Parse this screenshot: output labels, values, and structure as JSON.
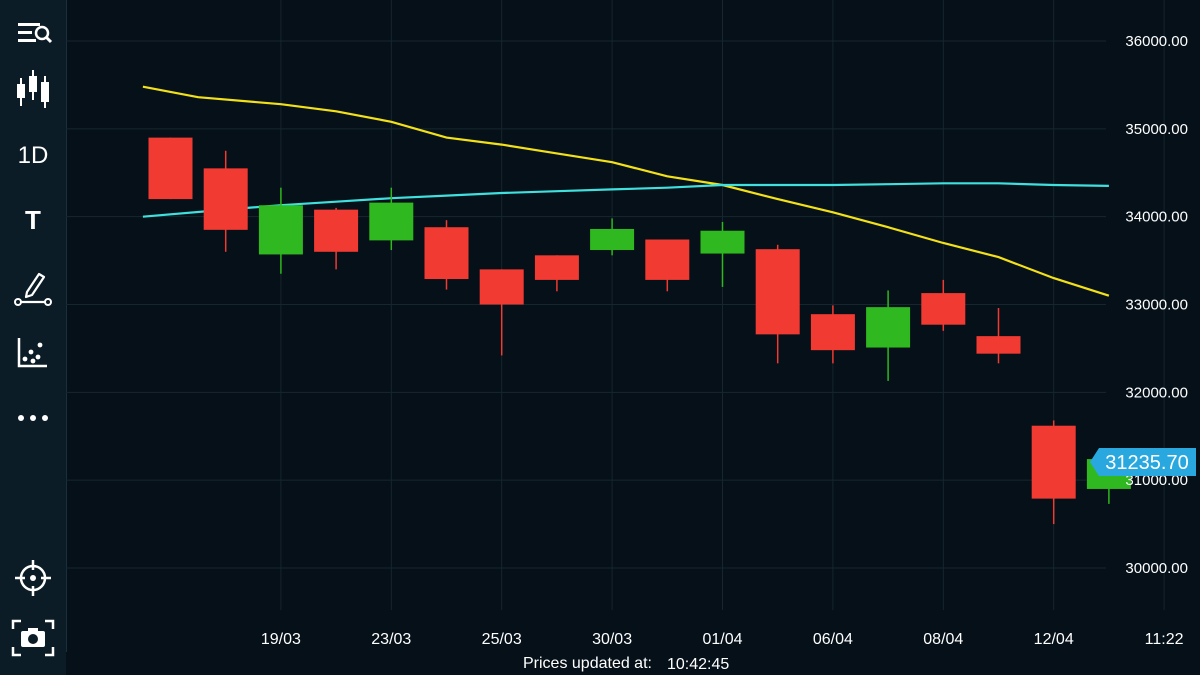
{
  "toolbar": {
    "items": [
      {
        "name": "menu-search-icon",
        "icon": "menu-search"
      },
      {
        "name": "candlestick-icon",
        "icon": "candlestick"
      },
      {
        "name": "timeframe-button",
        "label": "1D"
      },
      {
        "name": "text-tool-button",
        "label": "T"
      },
      {
        "name": "draw-tool-icon",
        "icon": "pencil-line"
      },
      {
        "name": "indicators-icon",
        "icon": "scatter"
      },
      {
        "name": "more-icon",
        "icon": "ellipsis"
      },
      {
        "name": "crosshair-icon",
        "icon": "crosshair"
      },
      {
        "name": "screenshot-icon",
        "icon": "camera"
      }
    ]
  },
  "chart_data": {
    "type": "candlestick",
    "y_axis_ticks": [
      "36000.00",
      "35000.00",
      "34000.00",
      "33000.00",
      "32000.00",
      "31000.00",
      "30000.00"
    ],
    "y_range": [
      29600,
      36300
    ],
    "x_axis_ticks": [
      {
        "label": "19/03",
        "index": 2
      },
      {
        "label": "23/03",
        "index": 4
      },
      {
        "label": "25/03",
        "index": 6
      },
      {
        "label": "30/03",
        "index": 8
      },
      {
        "label": "01/04",
        "index": 10
      },
      {
        "label": "06/04",
        "index": 12
      },
      {
        "label": "08/04",
        "index": 14
      },
      {
        "label": "12/04",
        "index": 16
      },
      {
        "label": "11:22",
        "index": 18
      }
    ],
    "candles": [
      {
        "index": 0,
        "open": 34900,
        "close": 34200,
        "high": 34900,
        "low": 34200
      },
      {
        "index": 1,
        "open": 34550,
        "close": 33850,
        "high": 34750,
        "low": 33600
      },
      {
        "index": 2,
        "open": 33570,
        "close": 34130,
        "high": 34330,
        "low": 33350
      },
      {
        "index": 3,
        "open": 34080,
        "close": 33600,
        "high": 34100,
        "low": 33400
      },
      {
        "index": 4,
        "open": 33730,
        "close": 34160,
        "high": 34330,
        "low": 33620
      },
      {
        "index": 5,
        "open": 33880,
        "close": 33290,
        "high": 33960,
        "low": 33170
      },
      {
        "index": 6,
        "open": 33400,
        "close": 33000,
        "high": 33400,
        "low": 32420
      },
      {
        "index": 7,
        "open": 33560,
        "close": 33280,
        "high": 33560,
        "low": 33150
      },
      {
        "index": 8,
        "open": 33620,
        "close": 33860,
        "high": 33980,
        "low": 33560
      },
      {
        "index": 9,
        "open": 33740,
        "close": 33280,
        "high": 33740,
        "low": 33150
      },
      {
        "index": 10,
        "open": 33580,
        "close": 33840,
        "high": 33940,
        "low": 33200
      },
      {
        "index": 11,
        "open": 33630,
        "close": 32660,
        "high": 33680,
        "low": 32330
      },
      {
        "index": 12,
        "open": 32890,
        "close": 32480,
        "high": 32990,
        "low": 32330
      },
      {
        "index": 13,
        "open": 32510,
        "close": 32970,
        "high": 33160,
        "low": 32130
      },
      {
        "index": 14,
        "open": 33130,
        "close": 32770,
        "high": 33280,
        "low": 32700
      },
      {
        "index": 15,
        "open": 32640,
        "close": 32440,
        "high": 32960,
        "low": 32330
      },
      {
        "index": 16,
        "open": 31620,
        "close": 30790,
        "high": 31680,
        "low": 30500
      },
      {
        "index": 17,
        "open": 30900,
        "close": 31240,
        "high": 31350,
        "low": 30730
      }
    ],
    "series": [
      {
        "color": "#f2e11a",
        "points": [
          [
            -0.5,
            35480
          ],
          [
            0.5,
            35360
          ],
          [
            2.0,
            35280
          ],
          [
            3.0,
            35200
          ],
          [
            4.0,
            35080
          ],
          [
            5.0,
            34900
          ],
          [
            6.0,
            34820
          ],
          [
            7.0,
            34720
          ],
          [
            8.0,
            34620
          ],
          [
            9.0,
            34460
          ],
          [
            10.0,
            34360
          ],
          [
            11.0,
            34200
          ],
          [
            12.0,
            34050
          ],
          [
            13.0,
            33880
          ],
          [
            14.0,
            33700
          ],
          [
            15.0,
            33540
          ],
          [
            16.0,
            33300
          ],
          [
            17.0,
            33100
          ]
        ]
      },
      {
        "color": "#3fe0de",
        "points": [
          [
            -0.5,
            34000
          ],
          [
            1.0,
            34080
          ],
          [
            2.0,
            34130
          ],
          [
            3.0,
            34170
          ],
          [
            4.0,
            34210
          ],
          [
            5.0,
            34240
          ],
          [
            6.0,
            34270
          ],
          [
            7.0,
            34290
          ],
          [
            8.0,
            34310
          ],
          [
            9.0,
            34330
          ],
          [
            10.0,
            34360
          ],
          [
            11.0,
            34360
          ],
          [
            12.0,
            34360
          ],
          [
            13.0,
            34370
          ],
          [
            14.0,
            34380
          ],
          [
            15.0,
            34380
          ],
          [
            16.0,
            34360
          ],
          [
            17.0,
            34350
          ]
        ]
      }
    ],
    "current_price": "31235.70",
    "colors": {
      "up": "#2fb81f",
      "down": "#f03a32",
      "badge": "#29a8e0",
      "grid": "#16262f"
    }
  },
  "footer": {
    "label": "Prices updated at:",
    "time": "10:42:45"
  }
}
